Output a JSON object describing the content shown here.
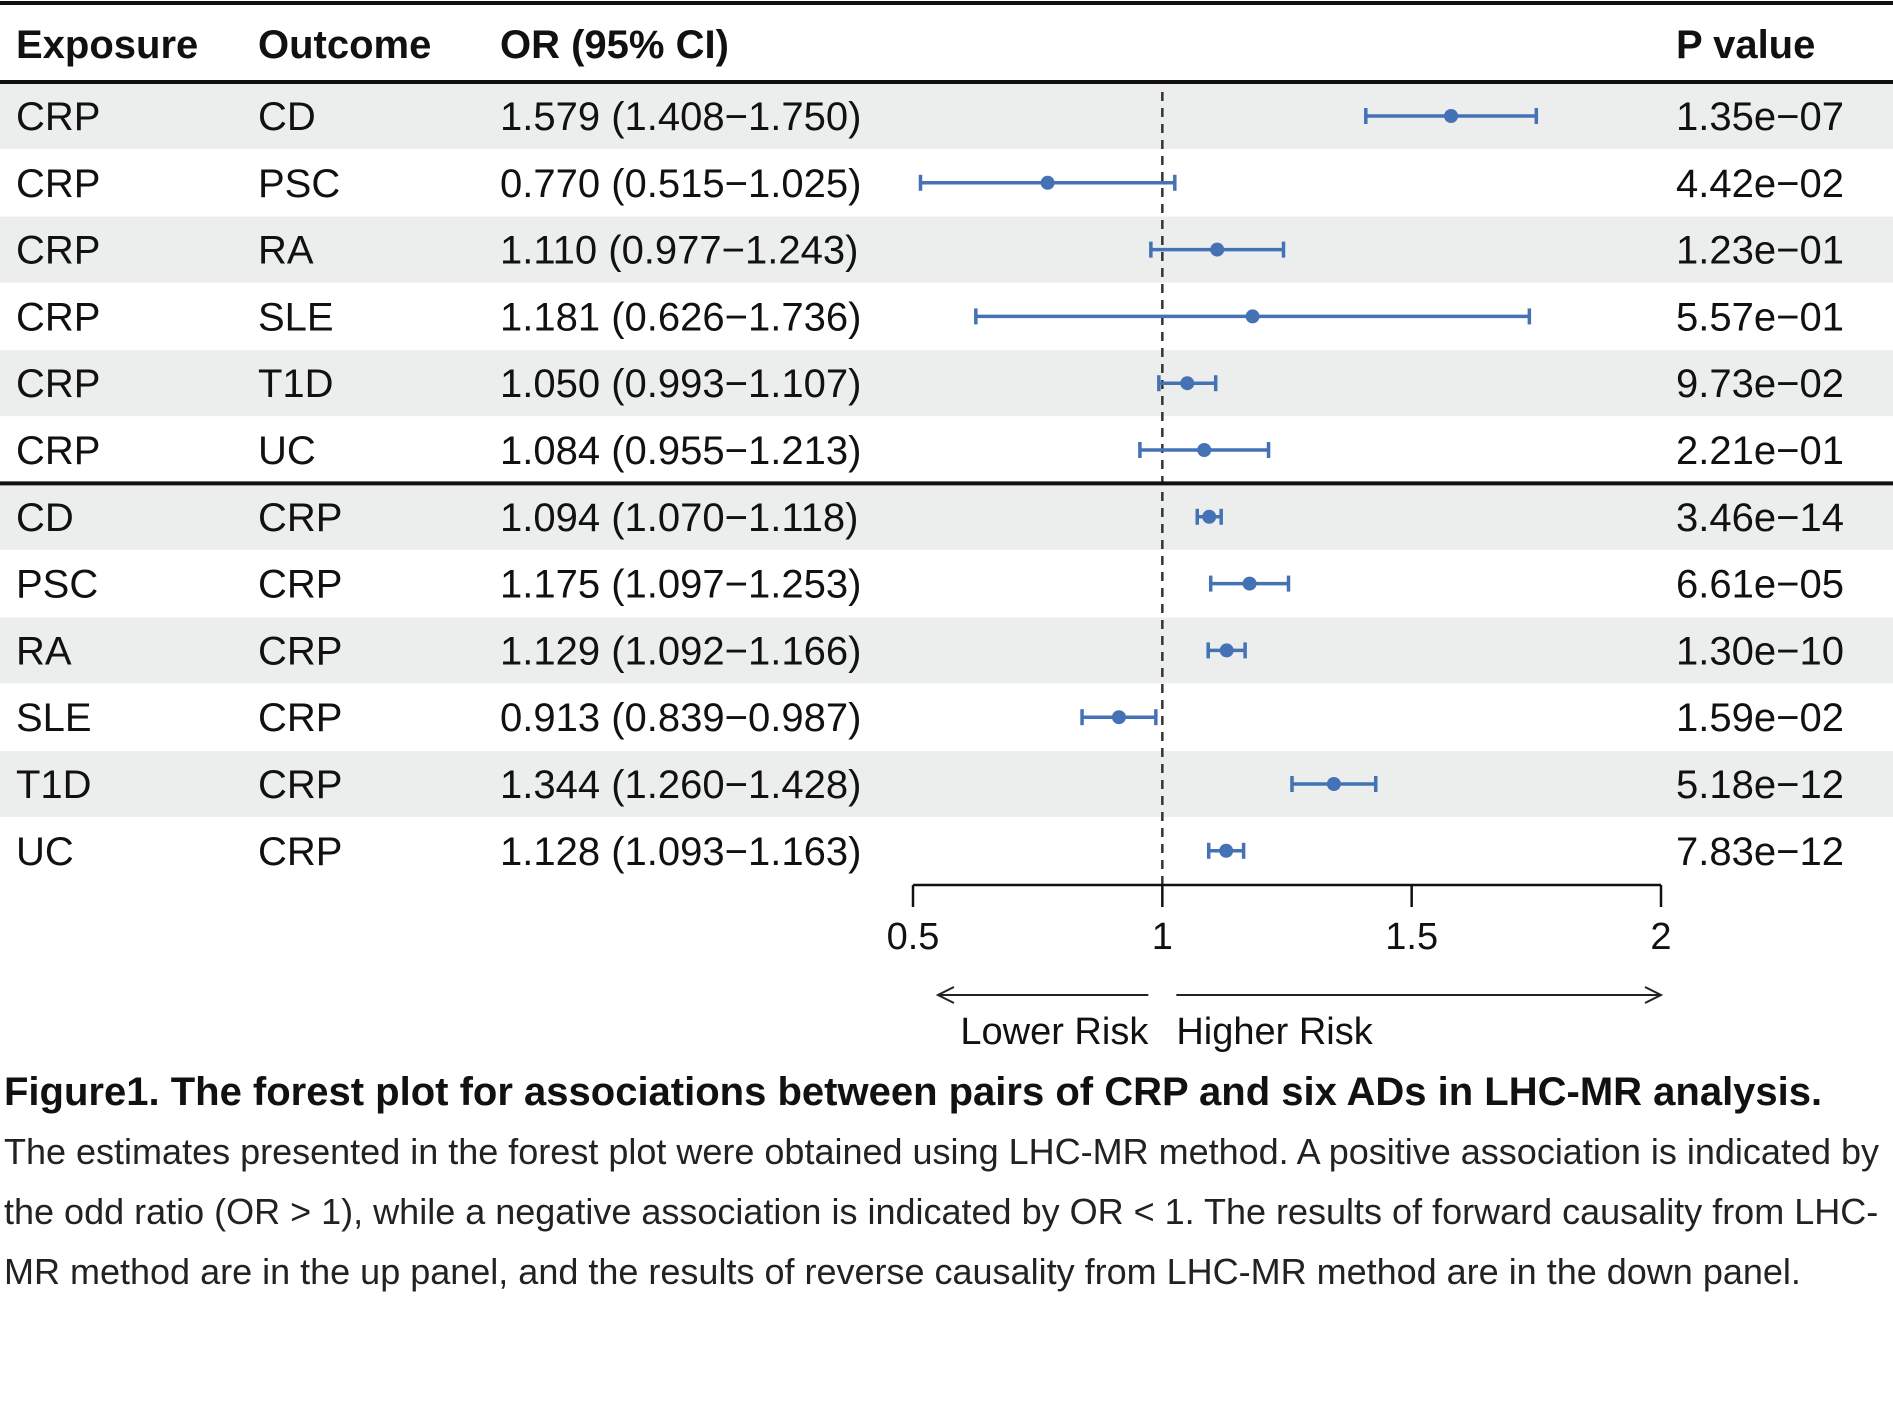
{
  "chart_data": {
    "type": "forest",
    "columns": [
      "Exposure",
      "Outcome",
      "OR (95% CI)",
      "P value"
    ],
    "x_ticks": [
      0.5,
      1,
      1.5,
      2
    ],
    "x_tick_labels": [
      "0.5",
      "1",
      "1.5",
      "2"
    ],
    "xlim": [
      0.5,
      2
    ],
    "reference_line": 1,
    "direction_labels": {
      "left": "Lower Risk",
      "right": "Higher Risk"
    },
    "color": "#4472b4",
    "rows": [
      {
        "exposure": "CRP",
        "outcome": "CD",
        "or": 1.579,
        "lo": 1.408,
        "hi": 1.75,
        "ci_text": "1.579 (1.408−1.750)",
        "p": "1.35e−07"
      },
      {
        "exposure": "CRP",
        "outcome": "PSC",
        "or": 0.77,
        "lo": 0.515,
        "hi": 1.025,
        "ci_text": "0.770 (0.515−1.025)",
        "p": "4.42e−02"
      },
      {
        "exposure": "CRP",
        "outcome": "RA",
        "or": 1.11,
        "lo": 0.977,
        "hi": 1.243,
        "ci_text": "1.110 (0.977−1.243)",
        "p": "1.23e−01"
      },
      {
        "exposure": "CRP",
        "outcome": "SLE",
        "or": 1.181,
        "lo": 0.626,
        "hi": 1.736,
        "ci_text": "1.181 (0.626−1.736)",
        "p": "5.57e−01"
      },
      {
        "exposure": "CRP",
        "outcome": "T1D",
        "or": 1.05,
        "lo": 0.993,
        "hi": 1.107,
        "ci_text": "1.050 (0.993−1.107)",
        "p": "9.73e−02"
      },
      {
        "exposure": "CRP",
        "outcome": "UC",
        "or": 1.084,
        "lo": 0.955,
        "hi": 1.213,
        "ci_text": "1.084 (0.955−1.213)",
        "p": "2.21e−01"
      },
      {
        "exposure": "CD",
        "outcome": "CRP",
        "or": 1.094,
        "lo": 1.07,
        "hi": 1.118,
        "ci_text": "1.094 (1.070−1.118)",
        "p": "3.46e−14"
      },
      {
        "exposure": "PSC",
        "outcome": "CRP",
        "or": 1.175,
        "lo": 1.097,
        "hi": 1.253,
        "ci_text": "1.175 (1.097−1.253)",
        "p": "6.61e−05"
      },
      {
        "exposure": "RA",
        "outcome": "CRP",
        "or": 1.129,
        "lo": 1.092,
        "hi": 1.166,
        "ci_text": "1.129 (1.092−1.166)",
        "p": "1.30e−10"
      },
      {
        "exposure": "SLE",
        "outcome": "CRP",
        "or": 0.913,
        "lo": 0.839,
        "hi": 0.987,
        "ci_text": "0.913 (0.839−0.987)",
        "p": "1.59e−02"
      },
      {
        "exposure": "T1D",
        "outcome": "CRP",
        "or": 1.344,
        "lo": 1.26,
        "hi": 1.428,
        "ci_text": "1.344 (1.260−1.428)",
        "p": "5.18e−12"
      },
      {
        "exposure": "UC",
        "outcome": "CRP",
        "or": 1.128,
        "lo": 1.093,
        "hi": 1.163,
        "ci_text": "1.128 (1.093−1.163)",
        "p": "7.83e−12"
      }
    ]
  },
  "caption": {
    "title": "Figure1. The forest plot for associations between pairs of CRP and six ADs in LHC-MR analysis.",
    "text": "The estimates presented in the forest plot were obtained using LHC-MR method. A positive association is indicated by the odd ratio (OR > 1), while a negative association is indicated by OR < 1. The results of forward causality from LHC-MR method are in the up panel, and the results of reverse causality from LHC-MR method are in the down panel."
  }
}
